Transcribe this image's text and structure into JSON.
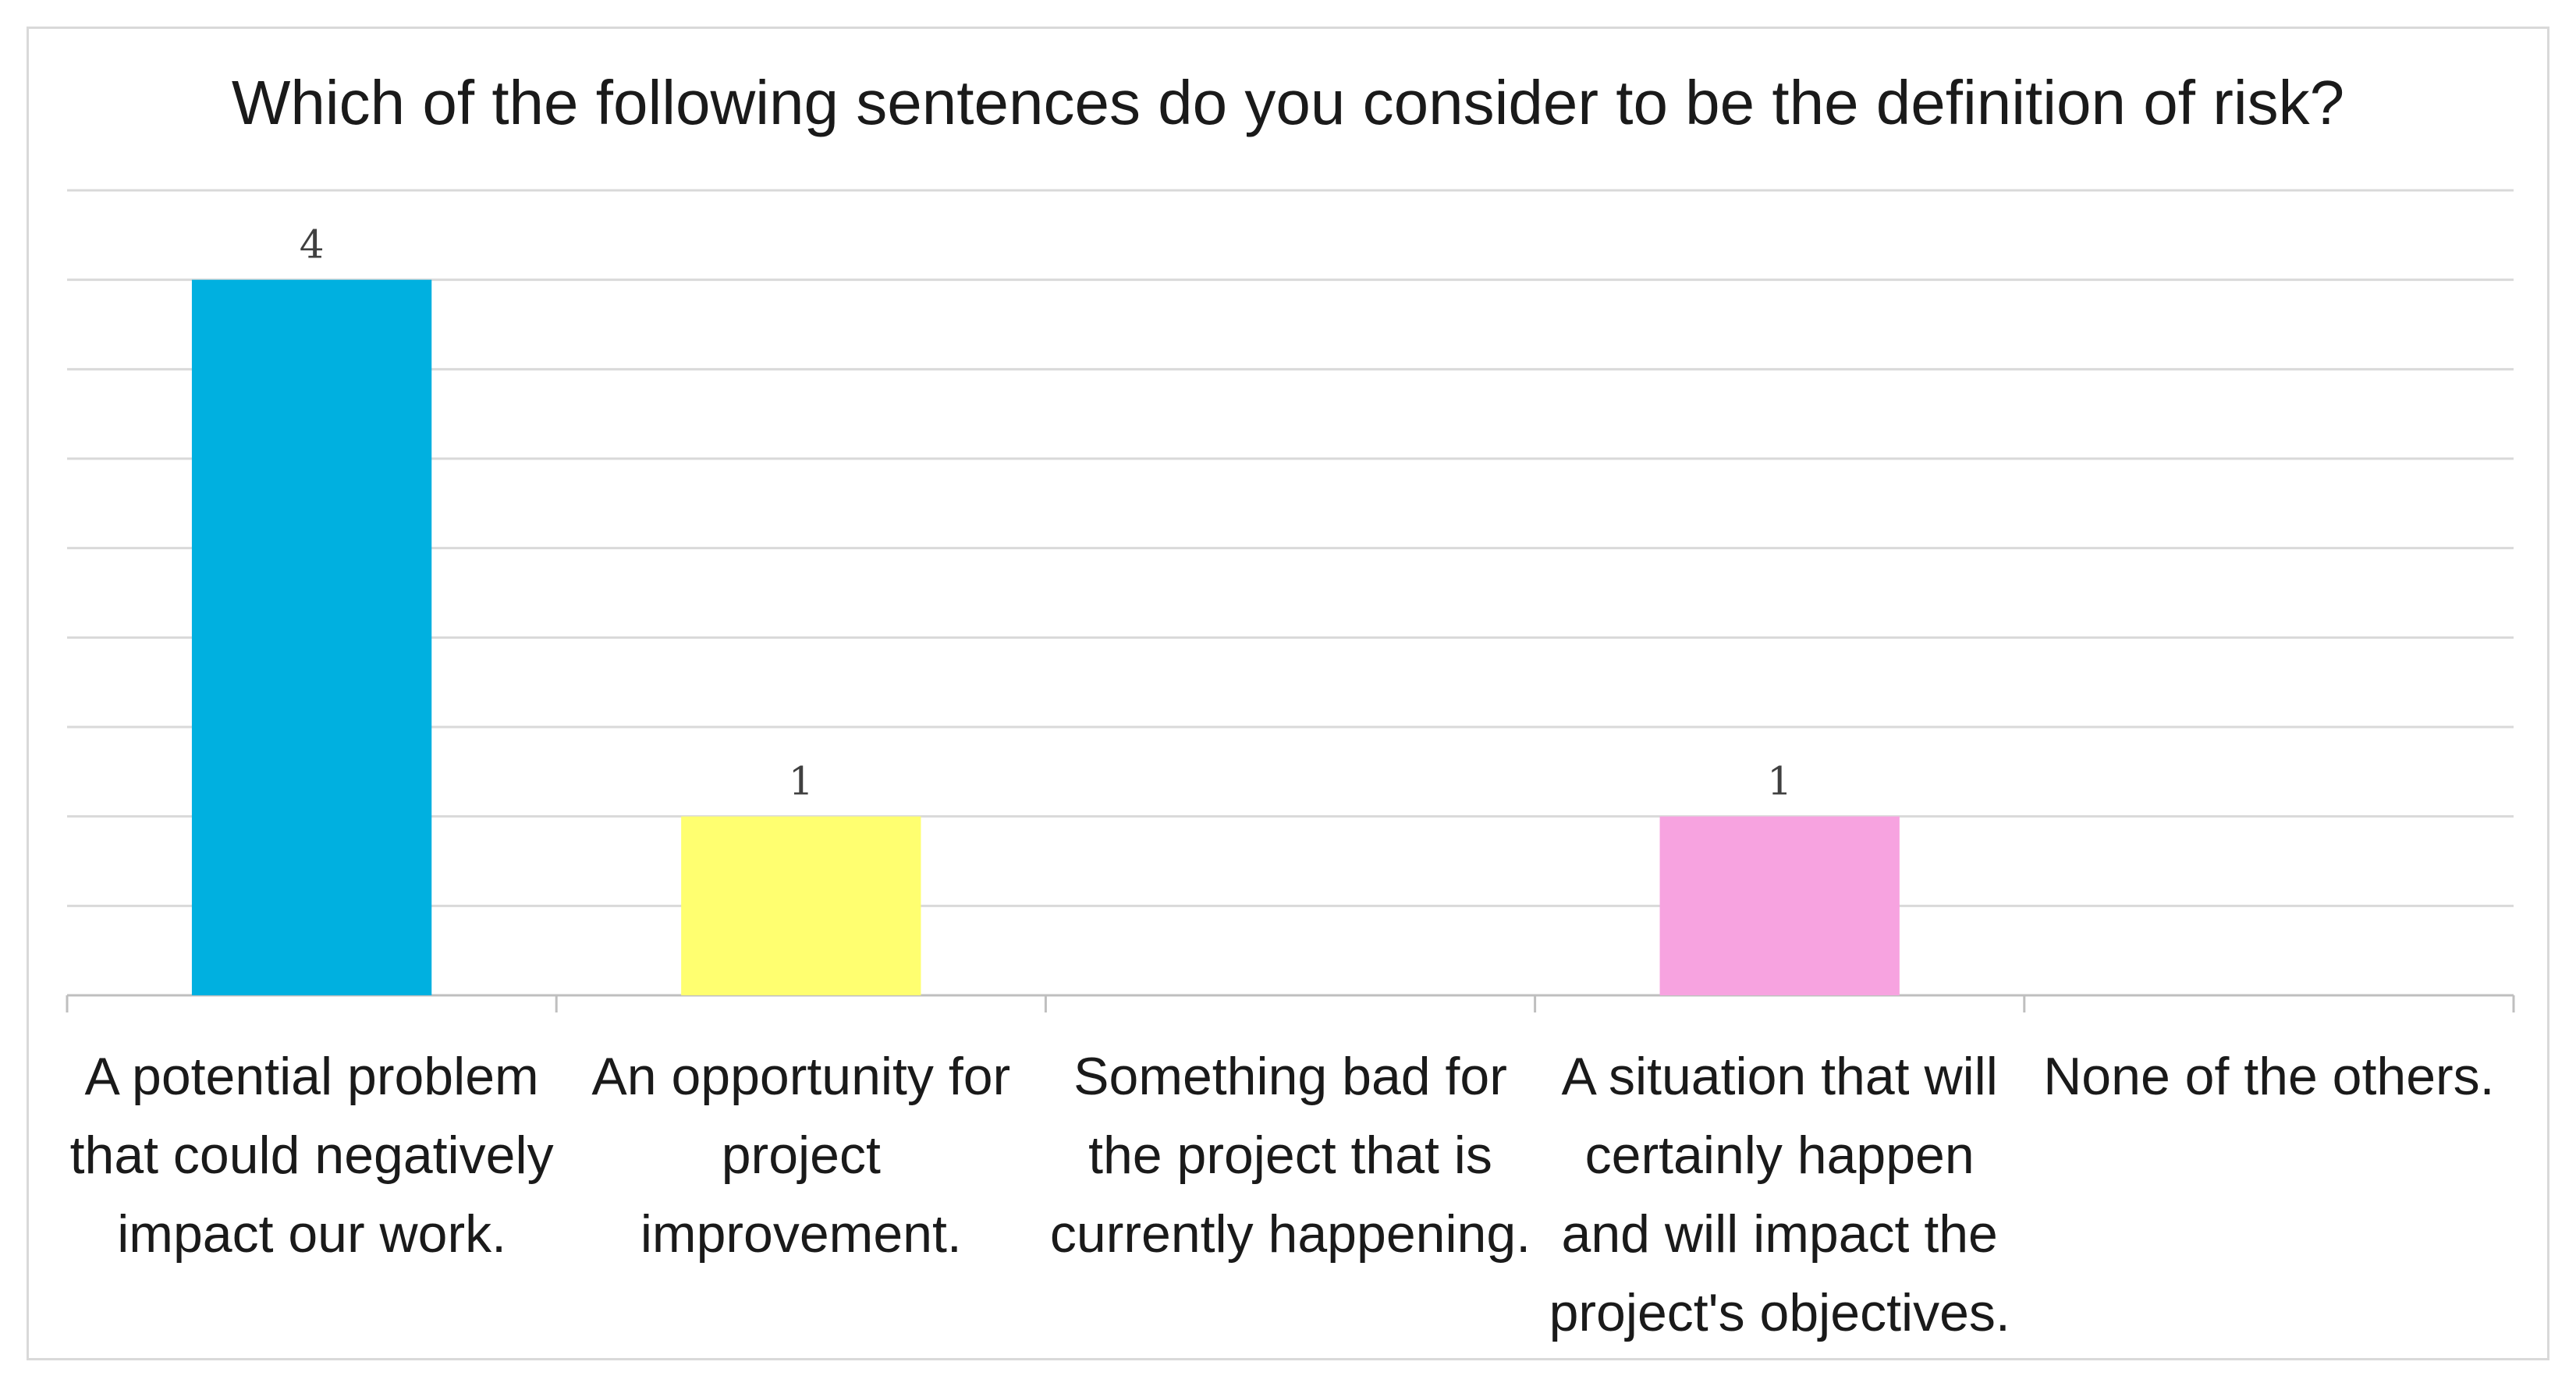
{
  "chart_data": {
    "type": "bar",
    "title": "Which of the following sentences do you consider to be the definition of risk?",
    "xlabel": "",
    "ylabel": "",
    "categories": [
      "A potential problem that could negatively impact our work.",
      "An opportunity for project improvement.",
      "Something bad for the project that is currently happening.",
      "A situation that will certainly happen and will impact the project's objectives.",
      "None of the others."
    ],
    "category_lines": [
      [
        "A potential problem",
        "that could negatively",
        "impact our work."
      ],
      [
        "An opportunity for",
        "project",
        "improvement."
      ],
      [
        "Something bad for",
        "the project that is",
        "currently happening."
      ],
      [
        "A situation that will",
        "certainly happen",
        "and will impact the",
        "project's objectives."
      ],
      [
        "None of the others."
      ]
    ],
    "values": [
      4,
      1,
      null,
      1,
      null
    ],
    "data_labels": [
      "4",
      "1",
      "",
      "1",
      ""
    ],
    "bar_colors": [
      "#00b0e0",
      "#ffff70",
      "#cccccc",
      "#f7a3e0",
      "#cccccc"
    ],
    "ylim": [
      0,
      4.5
    ],
    "y_tick_step": 0.5,
    "grid": true,
    "legend": "none"
  }
}
